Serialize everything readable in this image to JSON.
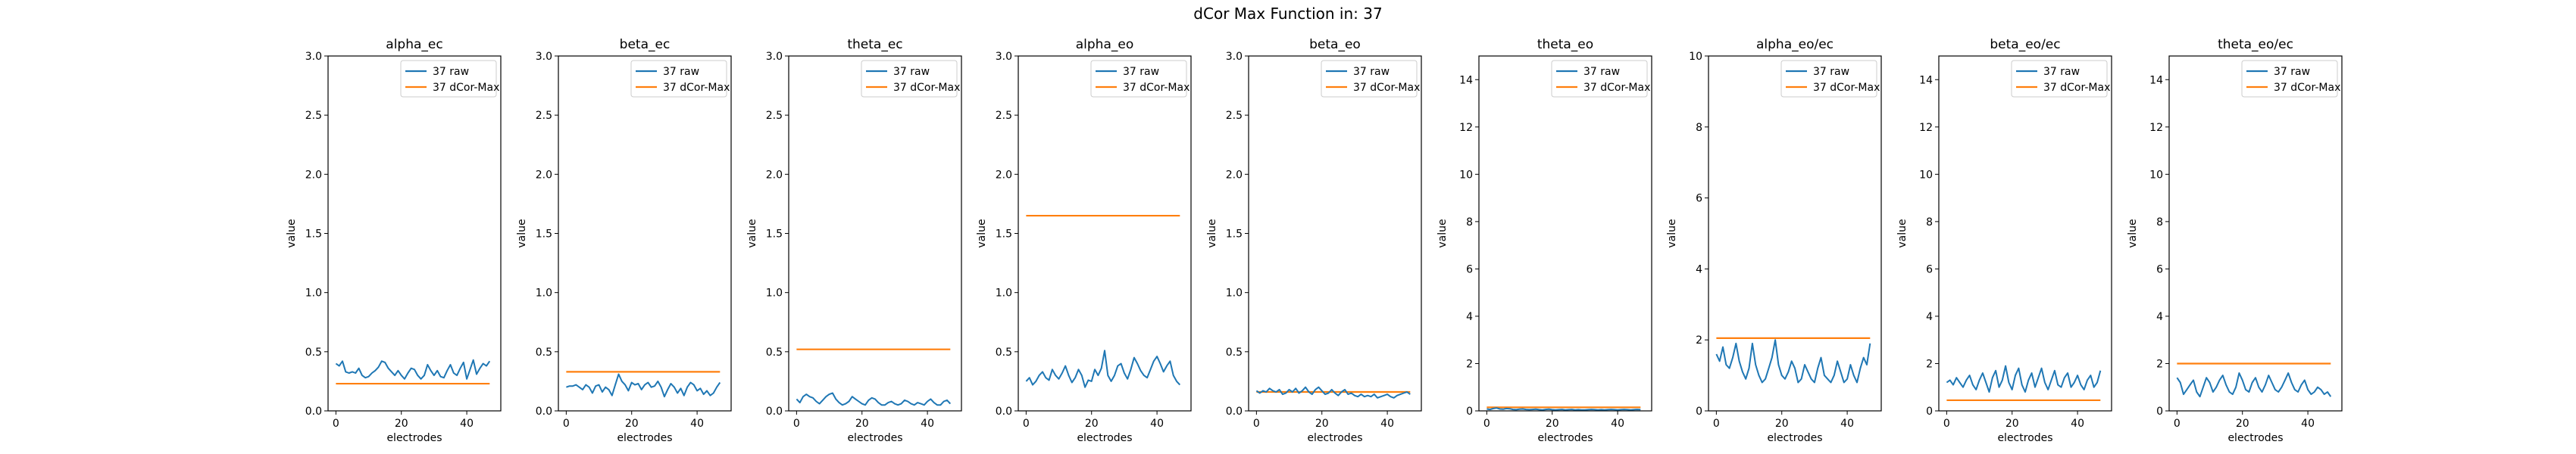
{
  "suptitle": "dCor Max Function in: 37",
  "colors": {
    "raw": "#1f77b4",
    "dcor": "#ff7f0e"
  },
  "chart_data": [
    {
      "type": "line",
      "title": "alpha_ec",
      "xlabel": "electrodes",
      "ylabel": "value",
      "xlim": [
        -2.4,
        50.4
      ],
      "ylim": [
        0,
        3.0
      ],
      "xticks": [
        0,
        20,
        40
      ],
      "xtick_labels": [
        "0",
        "20",
        "40"
      ],
      "yticks": [
        0,
        0.5,
        1.0,
        1.5,
        2.0,
        2.5,
        3.0
      ],
      "ytick_labels": [
        "0.0",
        "0.5",
        "1.0",
        "1.5",
        "2.0",
        "2.5",
        "3.0"
      ],
      "legend": "top-right",
      "series": [
        {
          "name": "37 raw",
          "kind": "series",
          "values": [
            0.4,
            0.38,
            0.42,
            0.33,
            0.32,
            0.33,
            0.32,
            0.36,
            0.3,
            0.28,
            0.29,
            0.32,
            0.34,
            0.37,
            0.42,
            0.41,
            0.36,
            0.33,
            0.3,
            0.34,
            0.3,
            0.27,
            0.32,
            0.36,
            0.35,
            0.3,
            0.27,
            0.3,
            0.39,
            0.34,
            0.3,
            0.34,
            0.29,
            0.28,
            0.34,
            0.39,
            0.32,
            0.3,
            0.36,
            0.41,
            0.27,
            0.35,
            0.43,
            0.31,
            0.36,
            0.4,
            0.38,
            0.42
          ]
        },
        {
          "name": "37 dCor-Max",
          "kind": "constant",
          "value": 0.23
        }
      ]
    },
    {
      "type": "line",
      "title": "beta_ec",
      "xlabel": "electrodes",
      "ylabel": "value",
      "xlim": [
        -2.4,
        50.4
      ],
      "ylim": [
        0,
        3.0
      ],
      "xticks": [
        0,
        20,
        40
      ],
      "xtick_labels": [
        "0",
        "20",
        "40"
      ],
      "yticks": [
        0,
        0.5,
        1.0,
        1.5,
        2.0,
        2.5,
        3.0
      ],
      "ytick_labels": [
        "0.0",
        "0.5",
        "1.0",
        "1.5",
        "2.0",
        "2.5",
        "3.0"
      ],
      "legend": "top-right",
      "series": [
        {
          "name": "37 raw",
          "kind": "series",
          "values": [
            0.2,
            0.21,
            0.21,
            0.22,
            0.2,
            0.18,
            0.22,
            0.2,
            0.15,
            0.21,
            0.22,
            0.16,
            0.2,
            0.18,
            0.13,
            0.22,
            0.31,
            0.25,
            0.22,
            0.17,
            0.24,
            0.22,
            0.23,
            0.18,
            0.22,
            0.24,
            0.2,
            0.21,
            0.25,
            0.2,
            0.12,
            0.18,
            0.23,
            0.2,
            0.15,
            0.19,
            0.13,
            0.2,
            0.24,
            0.22,
            0.17,
            0.19,
            0.14,
            0.17,
            0.13,
            0.15,
            0.2,
            0.24
          ]
        },
        {
          "name": "37 dCor-Max",
          "kind": "constant",
          "value": 0.33
        }
      ]
    },
    {
      "type": "line",
      "title": "theta_ec",
      "xlabel": "electrodes",
      "ylabel": "value",
      "xlim": [
        -2.4,
        50.4
      ],
      "ylim": [
        0,
        3.0
      ],
      "xticks": [
        0,
        20,
        40
      ],
      "xtick_labels": [
        "0",
        "20",
        "40"
      ],
      "yticks": [
        0,
        0.5,
        1.0,
        1.5,
        2.0,
        2.5,
        3.0
      ],
      "ytick_labels": [
        "0.0",
        "0.5",
        "1.0",
        "1.5",
        "2.0",
        "2.5",
        "3.0"
      ],
      "legend": "top-right",
      "series": [
        {
          "name": "37 raw",
          "kind": "series",
          "values": [
            0.1,
            0.07,
            0.12,
            0.14,
            0.12,
            0.11,
            0.08,
            0.06,
            0.09,
            0.12,
            0.14,
            0.15,
            0.1,
            0.07,
            0.05,
            0.06,
            0.08,
            0.12,
            0.1,
            0.08,
            0.06,
            0.05,
            0.09,
            0.11,
            0.1,
            0.07,
            0.05,
            0.05,
            0.07,
            0.08,
            0.06,
            0.05,
            0.06,
            0.09,
            0.08,
            0.06,
            0.05,
            0.07,
            0.06,
            0.05,
            0.08,
            0.1,
            0.07,
            0.05,
            0.05,
            0.08,
            0.09,
            0.06
          ]
        },
        {
          "name": "37 dCor-Max",
          "kind": "constant",
          "value": 0.52
        }
      ]
    },
    {
      "type": "line",
      "title": "alpha_eo",
      "xlabel": "electrodes",
      "ylabel": "value",
      "xlim": [
        -2.4,
        50.4
      ],
      "ylim": [
        0,
        3.0
      ],
      "xticks": [
        0,
        20,
        40
      ],
      "xtick_labels": [
        "0",
        "20",
        "40"
      ],
      "yticks": [
        0,
        0.5,
        1.0,
        1.5,
        2.0,
        2.5,
        3.0
      ],
      "ytick_labels": [
        "0.0",
        "0.5",
        "1.0",
        "1.5",
        "2.0",
        "2.5",
        "3.0"
      ],
      "legend": "top-right",
      "series": [
        {
          "name": "37 raw",
          "kind": "series",
          "values": [
            0.25,
            0.28,
            0.22,
            0.25,
            0.3,
            0.33,
            0.28,
            0.26,
            0.35,
            0.3,
            0.27,
            0.32,
            0.38,
            0.3,
            0.24,
            0.28,
            0.35,
            0.3,
            0.2,
            0.26,
            0.25,
            0.35,
            0.3,
            0.36,
            0.51,
            0.3,
            0.25,
            0.3,
            0.38,
            0.4,
            0.32,
            0.27,
            0.35,
            0.45,
            0.4,
            0.34,
            0.3,
            0.28,
            0.35,
            0.42,
            0.46,
            0.4,
            0.33,
            0.38,
            0.42,
            0.3,
            0.25,
            0.22
          ]
        },
        {
          "name": "37 dCor-Max",
          "kind": "constant",
          "value": 1.65
        }
      ]
    },
    {
      "type": "line",
      "title": "beta_eo",
      "xlabel": "electrodes",
      "ylabel": "value",
      "xlim": [
        -2.4,
        50.4
      ],
      "ylim": [
        0,
        3.0
      ],
      "xticks": [
        0,
        20,
        40
      ],
      "xtick_labels": [
        "0",
        "20",
        "40"
      ],
      "yticks": [
        0,
        0.5,
        1.0,
        1.5,
        2.0,
        2.5,
        3.0
      ],
      "ytick_labels": [
        "0.0",
        "0.5",
        "1.0",
        "1.5",
        "2.0",
        "2.5",
        "3.0"
      ],
      "legend": "top-right",
      "series": [
        {
          "name": "37 raw",
          "kind": "series",
          "values": [
            0.17,
            0.15,
            0.17,
            0.16,
            0.19,
            0.17,
            0.16,
            0.18,
            0.14,
            0.15,
            0.18,
            0.16,
            0.19,
            0.15,
            0.17,
            0.2,
            0.16,
            0.14,
            0.18,
            0.2,
            0.17,
            0.14,
            0.15,
            0.18,
            0.15,
            0.13,
            0.16,
            0.18,
            0.14,
            0.15,
            0.13,
            0.12,
            0.14,
            0.12,
            0.13,
            0.12,
            0.14,
            0.11,
            0.12,
            0.13,
            0.14,
            0.12,
            0.11,
            0.13,
            0.14,
            0.15,
            0.16,
            0.14
          ]
        },
        {
          "name": "37 dCor-Max",
          "kind": "constant",
          "value": 0.16
        }
      ]
    },
    {
      "type": "line",
      "title": "theta_eo",
      "xlabel": "electrodes",
      "ylabel": "value",
      "xlim": [
        -2.4,
        50.4
      ],
      "ylim": [
        0,
        15
      ],
      "xticks": [
        0,
        20,
        40
      ],
      "xtick_labels": [
        "0",
        "20",
        "40"
      ],
      "yticks": [
        0,
        2,
        4,
        6,
        8,
        10,
        12,
        14
      ],
      "ytick_labels": [
        "0",
        "2",
        "4",
        "6",
        "8",
        "10",
        "12",
        "14"
      ],
      "legend": "top-right",
      "series": [
        {
          "name": "37 raw",
          "kind": "series",
          "values": [
            0.08,
            0.06,
            0.1,
            0.12,
            0.08,
            0.07,
            0.1,
            0.09,
            0.06,
            0.05,
            0.07,
            0.08,
            0.06,
            0.05,
            0.06,
            0.07,
            0.05,
            0.04,
            0.06,
            0.07,
            0.05,
            0.04,
            0.05,
            0.06,
            0.04,
            0.05,
            0.06,
            0.04,
            0.05,
            0.04,
            0.04,
            0.05,
            0.06,
            0.05,
            0.04,
            0.05,
            0.04,
            0.05,
            0.06,
            0.05,
            0.04,
            0.05,
            0.06,
            0.05,
            0.04,
            0.05,
            0.06,
            0.05
          ]
        },
        {
          "name": "37 dCor-Max",
          "kind": "constant",
          "value": 0.15
        }
      ]
    },
    {
      "type": "line",
      "title": "alpha_eo/ec",
      "xlabel": "electrodes",
      "ylabel": "value",
      "xlim": [
        -2.4,
        50.4
      ],
      "ylim": [
        0,
        10
      ],
      "xticks": [
        0,
        20,
        40
      ],
      "xtick_labels": [
        "0",
        "20",
        "40"
      ],
      "yticks": [
        0,
        2,
        4,
        6,
        8,
        10
      ],
      "ytick_labels": [
        "0",
        "2",
        "4",
        "6",
        "8",
        "10"
      ],
      "legend": "top-right",
      "series": [
        {
          "name": "37 raw",
          "kind": "series",
          "values": [
            1.6,
            1.4,
            1.8,
            1.3,
            1.2,
            1.5,
            1.9,
            1.4,
            1.1,
            0.9,
            1.2,
            1.9,
            1.3,
            1.0,
            0.8,
            0.9,
            1.2,
            1.5,
            2.0,
            1.3,
            1.0,
            0.9,
            1.1,
            1.4,
            1.2,
            0.8,
            0.9,
            1.3,
            1.1,
            0.9,
            0.8,
            1.2,
            1.5,
            1.0,
            0.9,
            0.8,
            1.0,
            1.4,
            1.1,
            0.8,
            0.9,
            1.3,
            1.0,
            0.8,
            1.2,
            1.5,
            1.3,
            1.9
          ]
        },
        {
          "name": "37 dCor-Max",
          "kind": "constant",
          "value": 2.05
        }
      ]
    },
    {
      "type": "line",
      "title": "beta_eo/ec",
      "xlabel": "electrodes",
      "ylabel": "value",
      "xlim": [
        -2.4,
        50.4
      ],
      "ylim": [
        0,
        15
      ],
      "xticks": [
        0,
        20,
        40
      ],
      "xtick_labels": [
        "0",
        "20",
        "40"
      ],
      "yticks": [
        0,
        2,
        4,
        6,
        8,
        10,
        12,
        14
      ],
      "ytick_labels": [
        "0",
        "2",
        "4",
        "6",
        "8",
        "10",
        "12",
        "14"
      ],
      "legend": "top-right",
      "series": [
        {
          "name": "37 raw",
          "kind": "series",
          "values": [
            1.2,
            1.3,
            1.1,
            1.4,
            1.2,
            1.0,
            1.3,
            1.5,
            1.1,
            0.9,
            1.3,
            1.6,
            1.2,
            0.8,
            1.4,
            1.7,
            1.0,
            1.3,
            1.9,
            1.2,
            0.9,
            1.5,
            1.8,
            1.1,
            0.8,
            1.3,
            1.6,
            1.0,
            1.4,
            1.8,
            1.2,
            0.9,
            1.3,
            1.7,
            1.1,
            1.0,
            1.4,
            1.6,
            1.0,
            1.2,
            1.5,
            1.1,
            0.9,
            1.3,
            1.5,
            1.0,
            1.2,
            1.7
          ]
        },
        {
          "name": "37 dCor-Max",
          "kind": "constant",
          "value": 0.45
        }
      ]
    },
    {
      "type": "line",
      "title": "theta_eo/ec",
      "xlabel": "electrodes",
      "ylabel": "value",
      "xlim": [
        -2.4,
        50.4
      ],
      "ylim": [
        0,
        15
      ],
      "xticks": [
        0,
        20,
        40
      ],
      "xtick_labels": [
        "0",
        "20",
        "40"
      ],
      "yticks": [
        0,
        2,
        4,
        6,
        8,
        10,
        12,
        14
      ],
      "ytick_labels": [
        "0",
        "2",
        "4",
        "6",
        "8",
        "10",
        "12",
        "14"
      ],
      "legend": "top-right",
      "series": [
        {
          "name": "37 raw",
          "kind": "series",
          "values": [
            1.4,
            1.2,
            0.7,
            0.9,
            1.1,
            1.3,
            0.8,
            0.6,
            1.0,
            1.4,
            1.2,
            0.8,
            1.0,
            1.3,
            1.5,
            1.1,
            0.8,
            0.7,
            1.0,
            1.6,
            1.3,
            0.9,
            0.8,
            1.2,
            1.4,
            1.0,
            0.8,
            1.1,
            1.5,
            1.2,
            0.9,
            0.8,
            1.0,
            1.3,
            1.6,
            1.2,
            0.9,
            0.8,
            1.1,
            1.3,
            0.9,
            0.7,
            0.8,
            1.0,
            0.9,
            0.7,
            0.8,
            0.6
          ]
        },
        {
          "name": "37 dCor-Max",
          "kind": "constant",
          "value": 2.0
        }
      ]
    }
  ]
}
